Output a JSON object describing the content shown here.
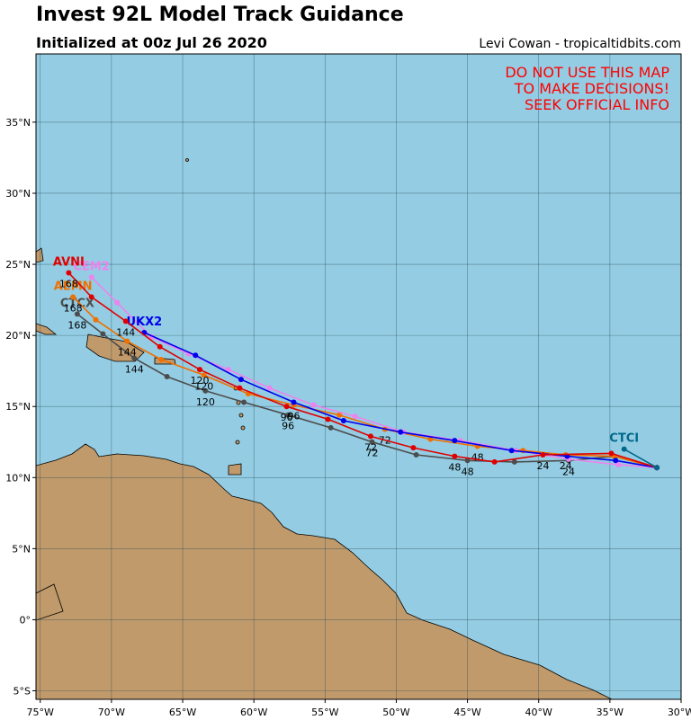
{
  "title": "Invest 92L Model Track Guidance",
  "subtitle": "Initialized at 00z Jul 26 2020",
  "credit": "Levi Cowan - tropicaltidbits.com",
  "warning": [
    "DO NOT USE THIS MAP",
    "TO MAKE DECISIONS!",
    "SEEK OFFICIAL INFO"
  ],
  "map": {
    "lonlim": [
      -75.3,
      -30
    ],
    "latlim": [
      -5.6,
      39.8
    ],
    "lonticks": [
      {
        "value": -75,
        "label": "75°W"
      },
      {
        "value": -70,
        "label": "70°W"
      },
      {
        "value": -65,
        "label": "65°W"
      },
      {
        "value": -60,
        "label": "60°W"
      },
      {
        "value": -55,
        "label": "55°W"
      },
      {
        "value": -50,
        "label": "50°W"
      },
      {
        "value": -45,
        "label": "45°W"
      },
      {
        "value": -40,
        "label": "40°W"
      },
      {
        "value": -35,
        "label": "35°W"
      },
      {
        "value": -30,
        "label": "30°W"
      }
    ],
    "latticks": [
      {
        "value": -5,
        "label": "5°S"
      },
      {
        "value": 0,
        "label": "0°"
      },
      {
        "value": 5,
        "label": "5°N"
      },
      {
        "value": 10,
        "label": "10°N"
      },
      {
        "value": 15,
        "label": "15°N"
      },
      {
        "value": 20,
        "label": "20°N"
      },
      {
        "value": 25,
        "label": "25°N"
      },
      {
        "value": 30,
        "label": "30°N"
      },
      {
        "value": 35,
        "label": "35°N"
      }
    ]
  },
  "tracks": [
    {
      "name": "CTCX",
      "color": "#4d4d4d",
      "lon": [
        -31.7,
        -34.7,
        -37.9,
        -41.7,
        -45.0,
        -48.6,
        -51.7,
        -54.6,
        -57.6,
        -60.7,
        -63.4,
        -66.1,
        -68.4,
        -70.6,
        -72.4
      ],
      "lat": [
        10.7,
        11.5,
        11.2,
        11.1,
        11.2,
        11.6,
        12.5,
        13.5,
        14.4,
        15.3,
        16.1,
        17.1,
        18.4,
        20.1,
        21.5
      ],
      "hours": [
        null,
        null,
        24,
        null,
        48,
        null,
        72,
        null,
        96,
        null,
        120,
        null,
        144,
        null,
        168
      ]
    },
    {
      "name": "AEMN",
      "color": "#f07000",
      "lon": [
        -31.7,
        -34.7,
        -38.1,
        -41.1,
        -44.3,
        -47.6,
        -50.8,
        -54.0,
        -57.2,
        -60.4,
        -63.5,
        -66.5,
        -68.9,
        -71.1,
        -72.7
      ],
      "lat": [
        10.7,
        11.5,
        11.6,
        11.9,
        12.2,
        12.7,
        13.4,
        14.4,
        15.1,
        15.9,
        17.2,
        18.3,
        19.6,
        21.1,
        22.7
      ],
      "hours": [
        null,
        null,
        24,
        null,
        48,
        null,
        72,
        null,
        96,
        null,
        120,
        null,
        144,
        null,
        168
      ]
    },
    {
      "name": "CEM2",
      "color": "#ee82ee",
      "lon": [
        -31.7,
        -34.4,
        -37.9,
        -41.6,
        -45.5,
        -49.5,
        -52.9,
        -55.8,
        -58.9,
        -61.8,
        -64.6,
        -67.2,
        -69.6,
        -71.4
      ],
      "lat": [
        10.7,
        10.9,
        11.3,
        11.9,
        12.6,
        13.2,
        14.3,
        15.1,
        16.3,
        17.6,
        18.7,
        19.9,
        22.3,
        24.1
      ]
    },
    {
      "name": "UKX2",
      "color": "#0000ee",
      "lon": [
        -31.7,
        -34.6,
        -38.0,
        -41.9,
        -45.9,
        -49.7,
        -53.7,
        -57.2,
        -60.9,
        -64.1,
        -67.7
      ],
      "lat": [
        10.7,
        11.2,
        11.5,
        11.9,
        12.6,
        13.2,
        14.0,
        15.3,
        16.9,
        18.6,
        20.2
      ]
    },
    {
      "name": "AVNI",
      "color": "#e00000",
      "lon": [
        -31.7,
        -34.9,
        -39.7,
        -43.1,
        -45.9,
        -48.8,
        -51.8,
        -54.8,
        -57.7,
        -61.0,
        -63.8,
        -66.6,
        -69.0,
        -71.4,
        -73.0
      ],
      "lat": [
        10.7,
        11.7,
        11.6,
        11.1,
        11.5,
        12.1,
        12.9,
        14.1,
        15.0,
        16.3,
        17.6,
        19.2,
        21.0,
        22.7,
        24.4
      ],
      "hours": [
        null,
        null,
        24,
        null,
        48,
        null,
        72,
        null,
        96,
        null,
        120,
        null,
        144,
        null,
        168
      ]
    },
    {
      "name": "CTCI",
      "color": "#00688b",
      "lon": [
        -31.7,
        -34.0
      ],
      "lat": [
        10.7,
        12.0
      ]
    }
  ]
}
